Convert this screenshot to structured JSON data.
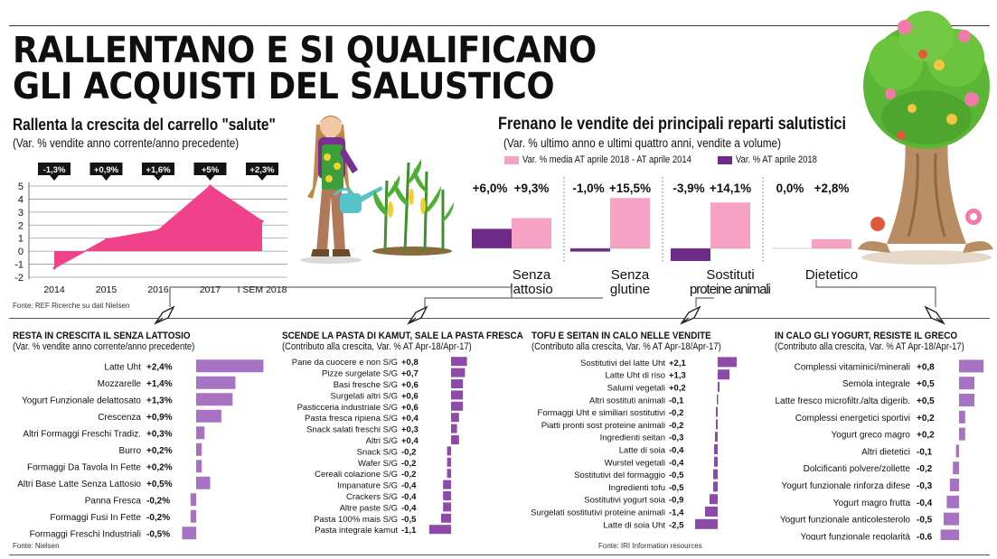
{
  "main_title": [
    "RALLENTANO E SI QUALIFICANO",
    "GLI ACQUISTI DEL SALUSTICO"
  ],
  "colors": {
    "pink": "#f0418b",
    "light_pink": "#f7a2c4",
    "purple": "#6d2a86",
    "bar_purple": "#a872c2",
    "bar_purple_dark": "#8e4aa9"
  },
  "chart_data": [
    {
      "type": "area",
      "title": "Rallenta la crescita del carrello \"salute\"",
      "subtitle": "(Var. % vendite anno corrente/anno precedente)",
      "categories": [
        "2014",
        "2015",
        "2016",
        "2017",
        "I SEM 2018"
      ],
      "values": [
        -1.3,
        0.9,
        1.6,
        5,
        2.3
      ],
      "data_labels": [
        "-1,3%",
        "+0,9%",
        "+1,6%",
        "+5%",
        "+2,3%"
      ],
      "yticks": [
        "5",
        "4",
        "3",
        "2",
        "1",
        "0",
        "-1",
        "-2"
      ],
      "ylim": [
        -2,
        5
      ],
      "grid": true,
      "source": "Fonte: REF Ricerche su dati Nielsen"
    },
    {
      "type": "bar",
      "title": "Frenano le vendite dei principali reparti salutistici",
      "subtitle": "(Var. % ultimo anno e ultimi quattro anni, vendite a volume)",
      "legend": [
        "Var. % media AT aprile 2018 - AT aprile 2014",
        "Var. % AT aprile 2018"
      ],
      "categories": [
        [
          "Senza",
          "lattosio"
        ],
        [
          "Senza",
          "glutine"
        ],
        [
          "Sostituti",
          "proteine animali"
        ],
        [
          "Dietetico"
        ]
      ],
      "series": [
        {
          "name": "Var. % AT aprile 2018",
          "values": [
            6.0,
            -1.0,
            -3.9,
            0.0
          ],
          "labels": [
            "+6,0%",
            "-1,0%",
            "-3,9%",
            "0,0%"
          ]
        },
        {
          "name": "Var. % media AT aprile 2018 - AT aprile 2014",
          "values": [
            9.3,
            15.5,
            14.1,
            2.8
          ],
          "labels": [
            "+9,3%",
            "+15,5%",
            "+14,1%",
            "+2,8%"
          ]
        }
      ]
    },
    {
      "type": "bar",
      "title": "RESTA IN CRESCITA IL SENZA LATTOSIO",
      "subtitle": "(Var. % vendite anno corrente/anno precedente)",
      "categories": [
        "Latte Uht",
        "Mozzarelle",
        "Yogurt Funzionale delattosato",
        "Crescenza",
        "Altri Formaggi Freschi Tradiz.",
        "Burro",
        "Formaggi Da Tavola In Fette",
        "Altri Base Latte Senza Lattosio",
        "Panna Fresca",
        "Formaggi Fusi In Fette",
        "Formaggi Freschi Industriali"
      ],
      "values": [
        2.4,
        1.4,
        1.3,
        0.9,
        0.3,
        0.2,
        0.2,
        0.5,
        -0.2,
        -0.2,
        -0.5
      ],
      "labels": [
        "+2,4%",
        "+1,4%",
        "+1,3%",
        "+0,9%",
        "+0,3%",
        "+0,2%",
        "+0,2%",
        "+0,5%",
        "-0,2%",
        "-0,2%",
        "-0,5%"
      ],
      "source": "Fonte: Nielsen"
    },
    {
      "type": "bar",
      "title": "SCENDE LA PASTA DI KAMUT, SALE LA PASTA FRESCA",
      "subtitle": "(Contributo alla crescita, Var. % AT Apr-18/Apr-17)",
      "categories": [
        "Pane da cuocere e non S/G",
        "Pizze surgelate S/G",
        "Basi fresche S/G",
        "Surgelati altri S/G",
        "Pasticceria industriale S/G",
        "Pasta fresca ripiena S/G",
        "Snack salati freschi S/G",
        "Altri S/G",
        "Snack S/G",
        "Wafer S/G",
        "Cereali colazione S/G",
        "Impanature S/G",
        "Crackers S/G",
        "Altre paste S/G",
        "Pasta 100% mais S/G",
        "Pasta integrale kamut"
      ],
      "values": [
        0.8,
        0.7,
        0.6,
        0.6,
        0.6,
        0.4,
        0.3,
        0.4,
        -0.2,
        -0.2,
        -0.2,
        -0.4,
        -0.4,
        -0.4,
        -0.5,
        -1.1
      ],
      "labels": [
        "+0,8",
        "+0,7",
        "+0,6",
        "+0,6",
        "+0,6",
        "+0,4",
        "+0,3",
        "+0,4",
        "-0,2",
        "-0,2",
        "-0,2",
        "-0,4",
        "-0,4",
        "-0,4",
        "-0,5",
        "-1,1"
      ]
    },
    {
      "type": "bar",
      "title": "TOFU E SEITAN IN CALO NELLE VENDITE",
      "subtitle": "(Contributo alla crescita, Var. % AT Apr-18/Apr-17)",
      "categories": [
        "Sostitutivi del latte Uht",
        "Latte Uht di riso",
        "Salumi vegetali",
        "Altri sostituti animali",
        "Formaggi Uht e similiari sostitutivi",
        "Piatti pronti sost proteine animali",
        "Ingredienti seitan",
        "Latte di soia",
        "Wurstel vegetali",
        "Sostitutivi del formaggio",
        "Ingredienti tofu",
        "Sostitutivi yogurt soia",
        "Surgelati sostitutivi proteine animali",
        "Latte di soia Uht"
      ],
      "values": [
        2.1,
        1.3,
        0.2,
        -0.1,
        -0.2,
        -0.2,
        -0.3,
        -0.4,
        -0.4,
        -0.5,
        -0.5,
        -0.9,
        -1.4,
        -2.5
      ],
      "labels": [
        "+2,1",
        "+1,3",
        "+0,2",
        "-0,1",
        "-0,2",
        "-0,2",
        "-0,3",
        "-0,4",
        "-0,4",
        "-0,5",
        "-0,5",
        "-0,9",
        "-1,4",
        "-2,5"
      ],
      "source": "Fonte: IRI Information resources"
    },
    {
      "type": "bar",
      "title": "IN CALO GLI YOGURT, RESISTE IL GRECO",
      "subtitle": "(Contributo alla crescita, Var. % AT Apr-18/Apr-17)",
      "categories": [
        "Complessi vitaminici/minerali",
        "Semola integrale",
        "Latte fresco microfiltr./alta digerib.",
        "Complessi energetici sportivi",
        "Yogurt greco magro",
        "Altri dietetici",
        "Dolcificanti polvere/zollette",
        "Yogurt funzionale rinforza difese",
        "Yogurt magro frutta",
        "Yogurt funzionale anticolesterolo",
        "Yogurt funzionale regolarità"
      ],
      "values": [
        0.8,
        0.5,
        0.5,
        0.2,
        0.2,
        -0.1,
        -0.2,
        -0.3,
        -0.4,
        -0.5,
        -0.6
      ],
      "labels": [
        "+0,8",
        "+0,5",
        "+0,5",
        "+0,2",
        "+0,2",
        "-0,1",
        "-0,2",
        "-0,3",
        "-0,4",
        "-0,5",
        "-0,6"
      ]
    }
  ]
}
